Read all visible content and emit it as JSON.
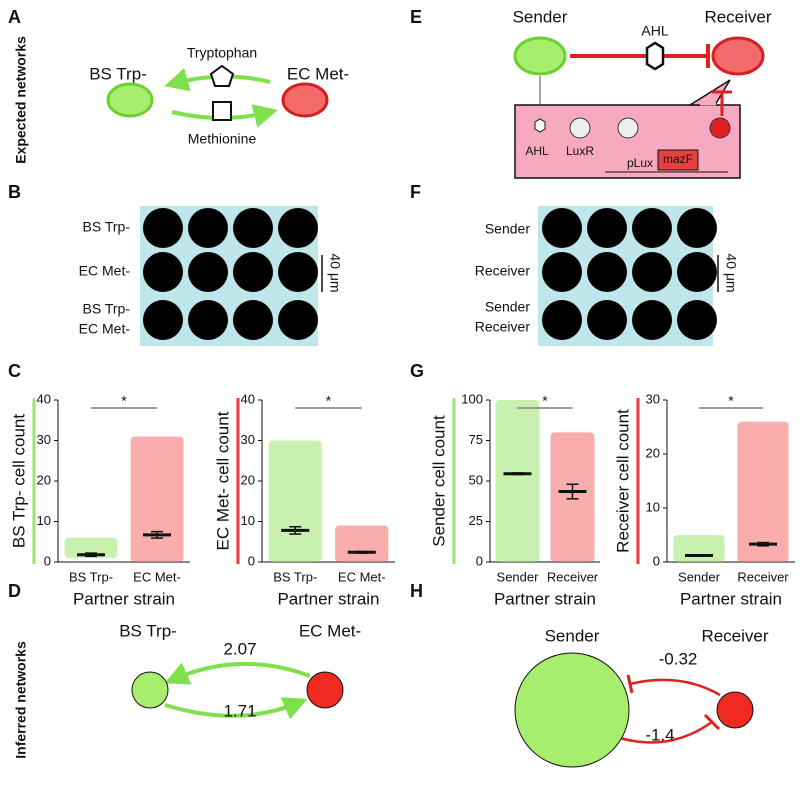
{
  "panel_labels": [
    "A",
    "B",
    "C",
    "D",
    "E",
    "F",
    "G",
    "H"
  ],
  "side_labels": [
    "Expected networks",
    "Inferred networks"
  ],
  "diagram_a": {
    "strain_1": "BS Trp-",
    "strain_2": "EC Met-",
    "top_molecule": "Tryptophan",
    "bottom_molecule": "Methionine"
  },
  "diagram_e": {
    "sender": "Sender",
    "receiver": "Receiver",
    "signal": "AHL",
    "inset": {
      "ahl": "AHL",
      "luxr": "LuxR",
      "promoter": "pLux",
      "gene": "mazF"
    }
  },
  "micrographs_b": {
    "rows": [
      [
        "BS Trp-"
      ],
      [
        "EC Met-"
      ],
      [
        "BS Trp-",
        "EC Met-"
      ]
    ],
    "scale": "40 μm"
  },
  "micrographs_f": {
    "rows": [
      [
        "Sender"
      ],
      [
        "Receiver"
      ],
      [
        "Sender",
        "Receiver"
      ]
    ],
    "scale": "40 μm"
  },
  "chart_data": [
    {
      "type": "strip",
      "y_label": "BS Trp- cell count",
      "x_label": "Partner strain",
      "categories": [
        "BS Trp-",
        "EC Met-"
      ],
      "colors": [
        "#9be36b",
        "#f46a6a"
      ],
      "axis_color": "#9be36b",
      "values": [
        1.8,
        6.7
      ],
      "errors": [
        0.4,
        0.8
      ],
      "ranges": [
        [
          1,
          6
        ],
        [
          0,
          31
        ]
      ],
      "ylim": [
        0,
        40
      ],
      "yticks": [
        0,
        10,
        20,
        30,
        40
      ],
      "significance": "*"
    },
    {
      "type": "strip",
      "y_label": "EC Met- cell count",
      "x_label": "Partner strain",
      "categories": [
        "BS Trp-",
        "EC Met-"
      ],
      "colors": [
        "#9be36b",
        "#f46a6a"
      ],
      "axis_color": "#f23b3b",
      "values": [
        7.8,
        2.4
      ],
      "errors": [
        0.9,
        0.2
      ],
      "ranges": [
        [
          0,
          30
        ],
        [
          0,
          9
        ]
      ],
      "ylim": [
        0,
        40
      ],
      "yticks": [
        0,
        10,
        20,
        30,
        40
      ],
      "significance": "*"
    },
    {
      "type": "strip",
      "y_label": "Sender cell count",
      "x_label": "Partner strain",
      "categories": [
        "Sender",
        "Receiver"
      ],
      "colors": [
        "#9be36b",
        "#f46a6a"
      ],
      "axis_color": "#9be36b",
      "values": [
        54.5,
        43.5
      ],
      "errors": [
        0.5,
        4.5
      ],
      "ranges": [
        [
          0,
          100
        ],
        [
          0,
          80
        ]
      ],
      "ylim": [
        0,
        100
      ],
      "yticks": [
        0,
        25,
        50,
        75,
        100
      ],
      "significance": "*"
    },
    {
      "type": "strip",
      "y_label": "Receiver cell count",
      "x_label": "Partner strain",
      "categories": [
        "Sender",
        "Receiver"
      ],
      "colors": [
        "#9be36b",
        "#f46a6a"
      ],
      "axis_color": "#f23b3b",
      "values": [
        1.2,
        3.3
      ],
      "errors": [
        0.1,
        0.3
      ],
      "ranges": [
        [
          0,
          5
        ],
        [
          0,
          26
        ]
      ],
      "ylim": [
        0,
        30
      ],
      "yticks": [
        0,
        10,
        20,
        30
      ],
      "significance": "*"
    }
  ],
  "network_d": {
    "node_1": "BS Trp-",
    "node_2": "EC Met-",
    "edge_top": 2.07,
    "edge_bottom": 1.71
  },
  "network_h": {
    "node_1": "Sender",
    "node_2": "Receiver",
    "edge_top": -0.32,
    "edge_bottom": -1.4
  }
}
